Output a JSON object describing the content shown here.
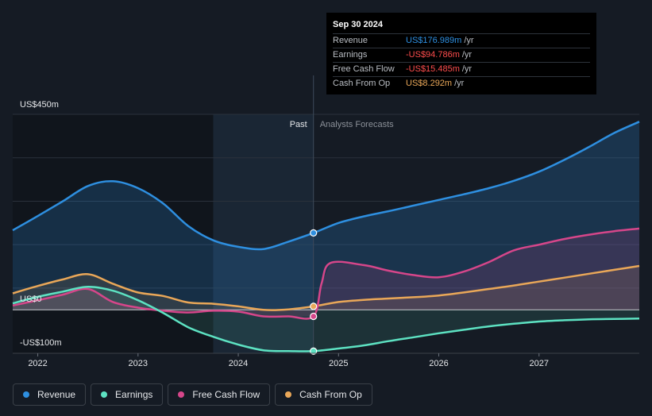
{
  "chart_data": {
    "type": "area",
    "ylim": [
      -100,
      450
    ],
    "xlim": [
      2021.75,
      2028.0
    ],
    "y_tick_labels": [
      {
        "value": 450,
        "label": "US$450m"
      },
      {
        "value": 0,
        "label": "US$0"
      },
      {
        "value": -100,
        "label": "-US$100m"
      }
    ],
    "x_ticks": [
      2022,
      2023,
      2024,
      2025,
      2026,
      2027
    ],
    "x_tick_labels": [
      "2022",
      "2023",
      "2024",
      "2025",
      "2026",
      "2027"
    ],
    "divider_x": 2024.75,
    "past_region_start": 2023.75,
    "past_label": "Past",
    "forecast_label": "Analysts Forecasts",
    "series": [
      {
        "name": "Revenue",
        "color": "#2e8fe0",
        "points": [
          [
            2021.75,
            183
          ],
          [
            2022.0,
            216
          ],
          [
            2022.25,
            250
          ],
          [
            2022.5,
            285
          ],
          [
            2022.75,
            296
          ],
          [
            2023.0,
            280
          ],
          [
            2023.25,
            245
          ],
          [
            2023.5,
            193
          ],
          [
            2023.75,
            160
          ],
          [
            2024.0,
            145
          ],
          [
            2024.25,
            140
          ],
          [
            2024.5,
            157
          ],
          [
            2024.75,
            177
          ],
          [
            2025.0,
            200
          ],
          [
            2025.25,
            215
          ],
          [
            2025.5,
            227
          ],
          [
            2025.75,
            240
          ],
          [
            2026.0,
            253
          ],
          [
            2026.25,
            266
          ],
          [
            2026.5,
            280
          ],
          [
            2026.75,
            297
          ],
          [
            2027.0,
            318
          ],
          [
            2027.25,
            345
          ],
          [
            2027.5,
            375
          ],
          [
            2027.75,
            407
          ],
          [
            2028.0,
            433
          ]
        ]
      },
      {
        "name": "Earnings",
        "color": "#5de2c2",
        "points": [
          [
            2021.75,
            15
          ],
          [
            2022.0,
            30
          ],
          [
            2022.25,
            42
          ],
          [
            2022.5,
            53
          ],
          [
            2022.75,
            44
          ],
          [
            2023.0,
            22
          ],
          [
            2023.25,
            -7
          ],
          [
            2023.5,
            -40
          ],
          [
            2023.75,
            -62
          ],
          [
            2024.0,
            -80
          ],
          [
            2024.25,
            -93
          ],
          [
            2024.5,
            -95
          ],
          [
            2024.75,
            -95
          ],
          [
            2025.0,
            -89
          ],
          [
            2025.25,
            -82
          ],
          [
            2025.5,
            -72
          ],
          [
            2025.75,
            -63
          ],
          [
            2026.0,
            -54
          ],
          [
            2026.25,
            -46
          ],
          [
            2026.5,
            -38
          ],
          [
            2026.75,
            -32
          ],
          [
            2027.0,
            -27
          ],
          [
            2027.25,
            -24
          ],
          [
            2027.5,
            -22
          ],
          [
            2027.75,
            -21
          ],
          [
            2028.0,
            -20
          ]
        ]
      },
      {
        "name": "Free Cash Flow",
        "color": "#d6468a",
        "points": [
          [
            2021.75,
            10
          ],
          [
            2022.0,
            22
          ],
          [
            2022.25,
            35
          ],
          [
            2022.5,
            48
          ],
          [
            2022.75,
            18
          ],
          [
            2023.0,
            5
          ],
          [
            2023.25,
            -2
          ],
          [
            2023.5,
            -6
          ],
          [
            2023.75,
            -2
          ],
          [
            2024.0,
            -4
          ],
          [
            2024.25,
            -15
          ],
          [
            2024.5,
            -15
          ],
          [
            2024.75,
            -15
          ],
          [
            2024.83,
            60
          ],
          [
            2024.92,
            108
          ],
          [
            2025.25,
            103
          ],
          [
            2025.5,
            90
          ],
          [
            2025.75,
            80
          ],
          [
            2026.0,
            75
          ],
          [
            2026.25,
            88
          ],
          [
            2026.5,
            110
          ],
          [
            2026.75,
            137
          ],
          [
            2027.0,
            150
          ],
          [
            2027.25,
            163
          ],
          [
            2027.5,
            173
          ],
          [
            2027.75,
            181
          ],
          [
            2028.0,
            187
          ]
        ]
      },
      {
        "name": "Cash From Op",
        "color": "#e9a758",
        "points": [
          [
            2021.75,
            38
          ],
          [
            2022.0,
            55
          ],
          [
            2022.25,
            70
          ],
          [
            2022.5,
            82
          ],
          [
            2022.75,
            60
          ],
          [
            2023.0,
            40
          ],
          [
            2023.25,
            32
          ],
          [
            2023.5,
            17
          ],
          [
            2023.75,
            14
          ],
          [
            2024.0,
            8
          ],
          [
            2024.25,
            0
          ],
          [
            2024.5,
            1
          ],
          [
            2024.75,
            8
          ],
          [
            2025.0,
            18
          ],
          [
            2025.25,
            23
          ],
          [
            2025.5,
            26
          ],
          [
            2025.75,
            29
          ],
          [
            2026.0,
            33
          ],
          [
            2026.25,
            40
          ],
          [
            2026.5,
            48
          ],
          [
            2026.75,
            56
          ],
          [
            2027.0,
            65
          ],
          [
            2027.25,
            74
          ],
          [
            2027.5,
            83
          ],
          [
            2027.75,
            92
          ],
          [
            2028.0,
            101
          ]
        ]
      }
    ]
  },
  "tooltip": {
    "date": "Sep 30 2024",
    "rows": [
      {
        "label": "Revenue",
        "value": "US$176.989m",
        "unit": "/yr",
        "color": "#2e8fe0"
      },
      {
        "label": "Earnings",
        "value": "-US$94.786m",
        "unit": "/yr",
        "color": "#ff4d4d"
      },
      {
        "label": "Free Cash Flow",
        "value": "-US$15.485m",
        "unit": "/yr",
        "color": "#ff4d4d"
      },
      {
        "label": "Cash From Op",
        "value": "US$8.292m",
        "unit": "/yr",
        "color": "#e9a758"
      }
    ]
  },
  "legend": [
    {
      "label": "Revenue",
      "color": "#2e8fe0"
    },
    {
      "label": "Earnings",
      "color": "#5de2c2"
    },
    {
      "label": "Free Cash Flow",
      "color": "#d6468a"
    },
    {
      "label": "Cash From Op",
      "color": "#e9a758"
    }
  ]
}
